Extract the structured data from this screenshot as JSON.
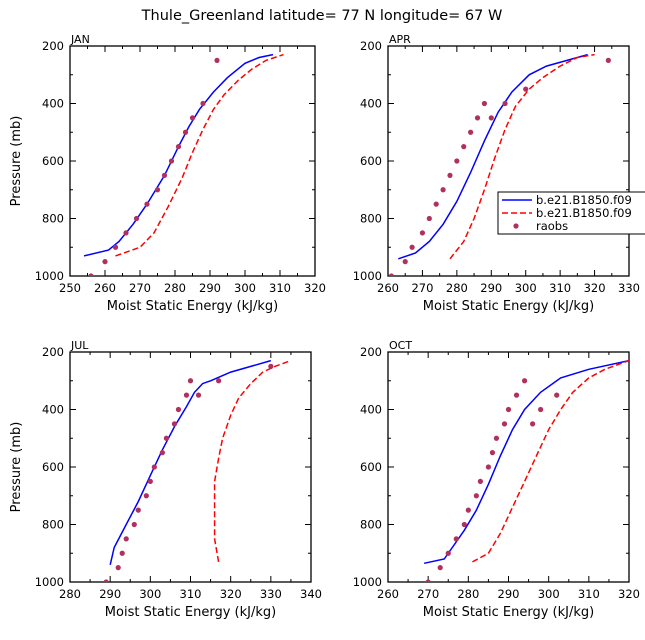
{
  "figure": {
    "title": "Thule_Greenland   latitude= 77 N longitude= 67 W",
    "legend": {
      "entries": [
        {
          "label": "b.e21.B1850.f09",
          "color": "#0000ff",
          "style": "solid"
        },
        {
          "label": "b.e21.B1850.f09",
          "color": "#ff0000",
          "style": "dashed"
        },
        {
          "label": "raobs",
          "color": "#b03060",
          "style": "marker"
        }
      ]
    }
  },
  "chart_data": [
    {
      "type": "line",
      "panel": "JAN",
      "title": "JAN",
      "xlabel": "Moist Static Energy (kJ/kg)",
      "ylabel": "Pressure (mb)",
      "xlim": [
        250,
        320
      ],
      "ylim": [
        1000,
        200
      ],
      "xticks": [
        250,
        260,
        270,
        280,
        290,
        300,
        310,
        320
      ],
      "yticks": [
        200,
        400,
        600,
        800,
        1000
      ],
      "series": [
        {
          "legend_ref": 0,
          "x": [
            254,
            261,
            264,
            268,
            272,
            277,
            281,
            284,
            287,
            291,
            295,
            300,
            304,
            308
          ],
          "y": [
            930,
            910,
            880,
            820,
            750,
            650,
            550,
            480,
            420,
            360,
            310,
            260,
            240,
            230
          ]
        },
        {
          "legend_ref": 1,
          "x": [
            263,
            270,
            274,
            278,
            282,
            285,
            288,
            291,
            294,
            298,
            302,
            306,
            311
          ],
          "y": [
            930,
            900,
            850,
            760,
            660,
            570,
            490,
            420,
            370,
            320,
            280,
            250,
            230
          ]
        },
        {
          "legend_ref": 2,
          "x": [
            256,
            260,
            263,
            266,
            269,
            272,
            275,
            277,
            279,
            281,
            283,
            285,
            288,
            292
          ],
          "y": [
            1000,
            950,
            900,
            850,
            800,
            750,
            700,
            650,
            600,
            550,
            500,
            450,
            400,
            250
          ]
        }
      ]
    },
    {
      "type": "line",
      "panel": "APR",
      "title": "APR",
      "xlabel": "Moist Static Energy (kJ/kg)",
      "ylabel": "",
      "xlim": [
        260,
        330
      ],
      "ylim": [
        1000,
        200
      ],
      "xticks": [
        260,
        270,
        280,
        290,
        300,
        310,
        320,
        330
      ],
      "yticks": [
        200,
        400,
        600,
        800,
        1000
      ],
      "series": [
        {
          "legend_ref": 0,
          "x": [
            263,
            268,
            272,
            276,
            280,
            284,
            288,
            292,
            296,
            301,
            306,
            312,
            318
          ],
          "y": [
            940,
            920,
            880,
            820,
            740,
            640,
            530,
            430,
            360,
            300,
            270,
            250,
            230
          ]
        },
        {
          "legend_ref": 1,
          "x": [
            278,
            282,
            285,
            288,
            291,
            294,
            297,
            301,
            305,
            310,
            315,
            320
          ],
          "y": [
            940,
            880,
            800,
            700,
            590,
            490,
            410,
            350,
            310,
            270,
            240,
            230
          ]
        },
        {
          "legend_ref": 2,
          "x": [
            261,
            265,
            267,
            270,
            272,
            274,
            276,
            278,
            280,
            282,
            284,
            286,
            288,
            290,
            294,
            300,
            324
          ],
          "y": [
            1000,
            950,
            900,
            850,
            800,
            750,
            700,
            650,
            600,
            550,
            500,
            450,
            400,
            450,
            400,
            350,
            250
          ]
        }
      ]
    },
    {
      "type": "line",
      "panel": "JUL",
      "title": "JUL",
      "xlabel": "Moist Static Energy (kJ/kg)",
      "ylabel": "Pressure (mb)",
      "xlim": [
        280,
        340
      ],
      "ylim": [
        1000,
        200
      ],
      "xticks": [
        280,
        290,
        300,
        310,
        320,
        330,
        340
      ],
      "yticks": [
        200,
        400,
        600,
        800,
        1000
      ],
      "series": [
        {
          "legend_ref": 0,
          "x": [
            290,
            291,
            294,
            297,
            300,
            303,
            306,
            309,
            311,
            313,
            315,
            320,
            325,
            330
          ],
          "y": [
            940,
            880,
            800,
            720,
            630,
            540,
            460,
            390,
            340,
            310,
            300,
            270,
            250,
            230
          ]
        },
        {
          "legend_ref": 1,
          "x": [
            317,
            316,
            316,
            316,
            317,
            318,
            320,
            322,
            325,
            328,
            331,
            335
          ],
          "y": [
            930,
            850,
            750,
            650,
            570,
            500,
            420,
            360,
            310,
            270,
            250,
            230
          ]
        },
        {
          "legend_ref": 2,
          "x": [
            289,
            292,
            293,
            294,
            296,
            297,
            299,
            300,
            301,
            303,
            304,
            306,
            307,
            309,
            310,
            312,
            317,
            330
          ],
          "y": [
            1000,
            950,
            900,
            850,
            800,
            750,
            700,
            650,
            600,
            550,
            500,
            450,
            400,
            350,
            300,
            350,
            300,
            250
          ]
        }
      ]
    },
    {
      "type": "line",
      "panel": "OCT",
      "title": "OCT",
      "xlabel": "Moist Static Energy (kJ/kg)",
      "ylabel": "",
      "xlim": [
        260,
        320
      ],
      "ylim": [
        1000,
        200
      ],
      "xticks": [
        260,
        270,
        280,
        290,
        300,
        310,
        320
      ],
      "yticks": [
        200,
        400,
        600,
        800,
        1000
      ],
      "series": [
        {
          "legend_ref": 0,
          "x": [
            269,
            274,
            276,
            279,
            282,
            285,
            288,
            291,
            294,
            298,
            303,
            310,
            320
          ],
          "y": [
            935,
            920,
            880,
            820,
            750,
            660,
            560,
            470,
            400,
            340,
            290,
            260,
            230
          ]
        },
        {
          "legend_ref": 1,
          "x": [
            281,
            285,
            288,
            291,
            294,
            297,
            300,
            303,
            306,
            310,
            314,
            320
          ],
          "y": [
            930,
            900,
            830,
            740,
            650,
            560,
            470,
            400,
            340,
            290,
            260,
            230
          ]
        },
        {
          "legend_ref": 2,
          "x": [
            270,
            273,
            275,
            277,
            279,
            280,
            282,
            283,
            285,
            286,
            287,
            289,
            290,
            292,
            294,
            296,
            298,
            302
          ],
          "y": [
            1000,
            950,
            900,
            850,
            800,
            750,
            700,
            650,
            600,
            550,
            500,
            450,
            400,
            350,
            300,
            450,
            400,
            350
          ]
        }
      ]
    }
  ]
}
